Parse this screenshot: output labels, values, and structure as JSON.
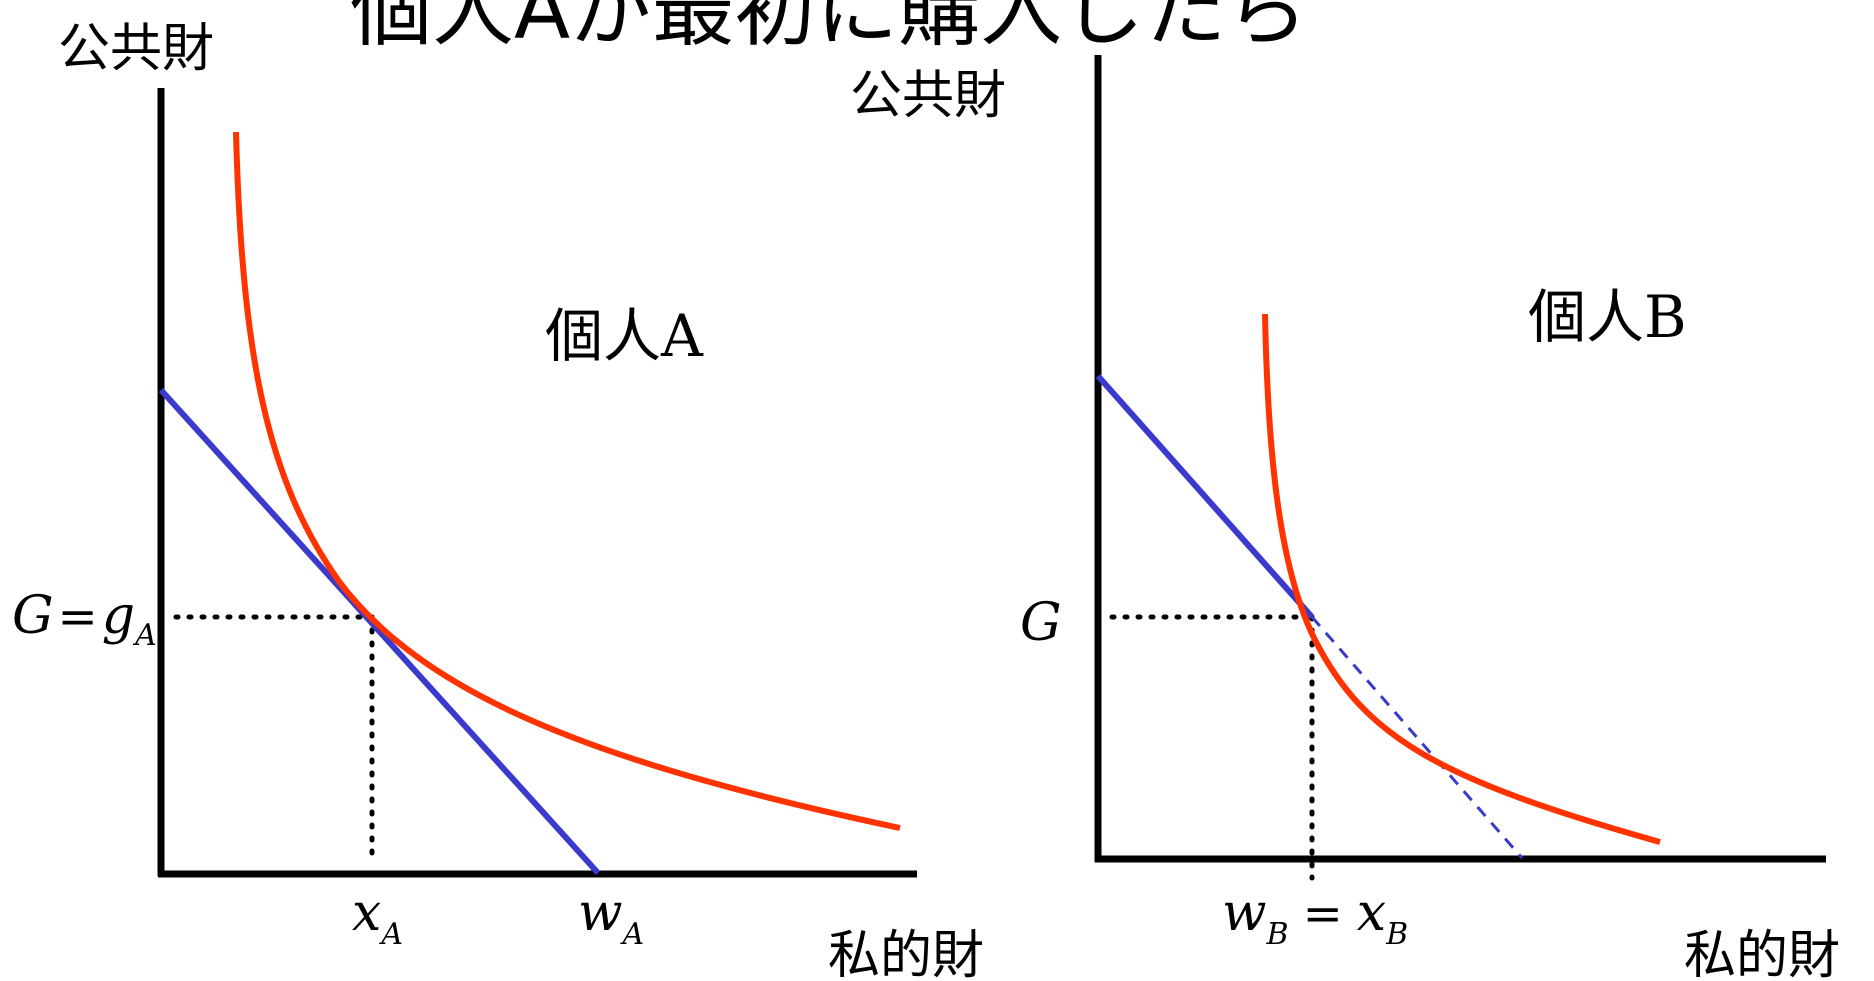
{
  "title": "個人Aが最初に購入したら",
  "colors": {
    "indifference_curve": "#ff3300",
    "budget_line": "#3a3acc",
    "axis": "#000000",
    "guide": "#000000"
  },
  "panels": [
    {
      "panel_label": "個人A",
      "y_axis_label": "公共財",
      "x_axis_label": "私的財",
      "y_marker": {
        "main": "G",
        "op": "=",
        "main2": "g",
        "sub": "A"
      },
      "x_markers": [
        {
          "main": "x",
          "sub": "A"
        },
        {
          "main": "w",
          "sub": "A"
        }
      ]
    },
    {
      "panel_label": "個人B",
      "y_axis_label": "公共財",
      "x_axis_label": "私的財",
      "y_marker": {
        "main": "G"
      },
      "x_marker": {
        "main1": "w",
        "sub1": "B",
        "op": "=",
        "main2": "x",
        "sub2": "B"
      }
    }
  ]
}
